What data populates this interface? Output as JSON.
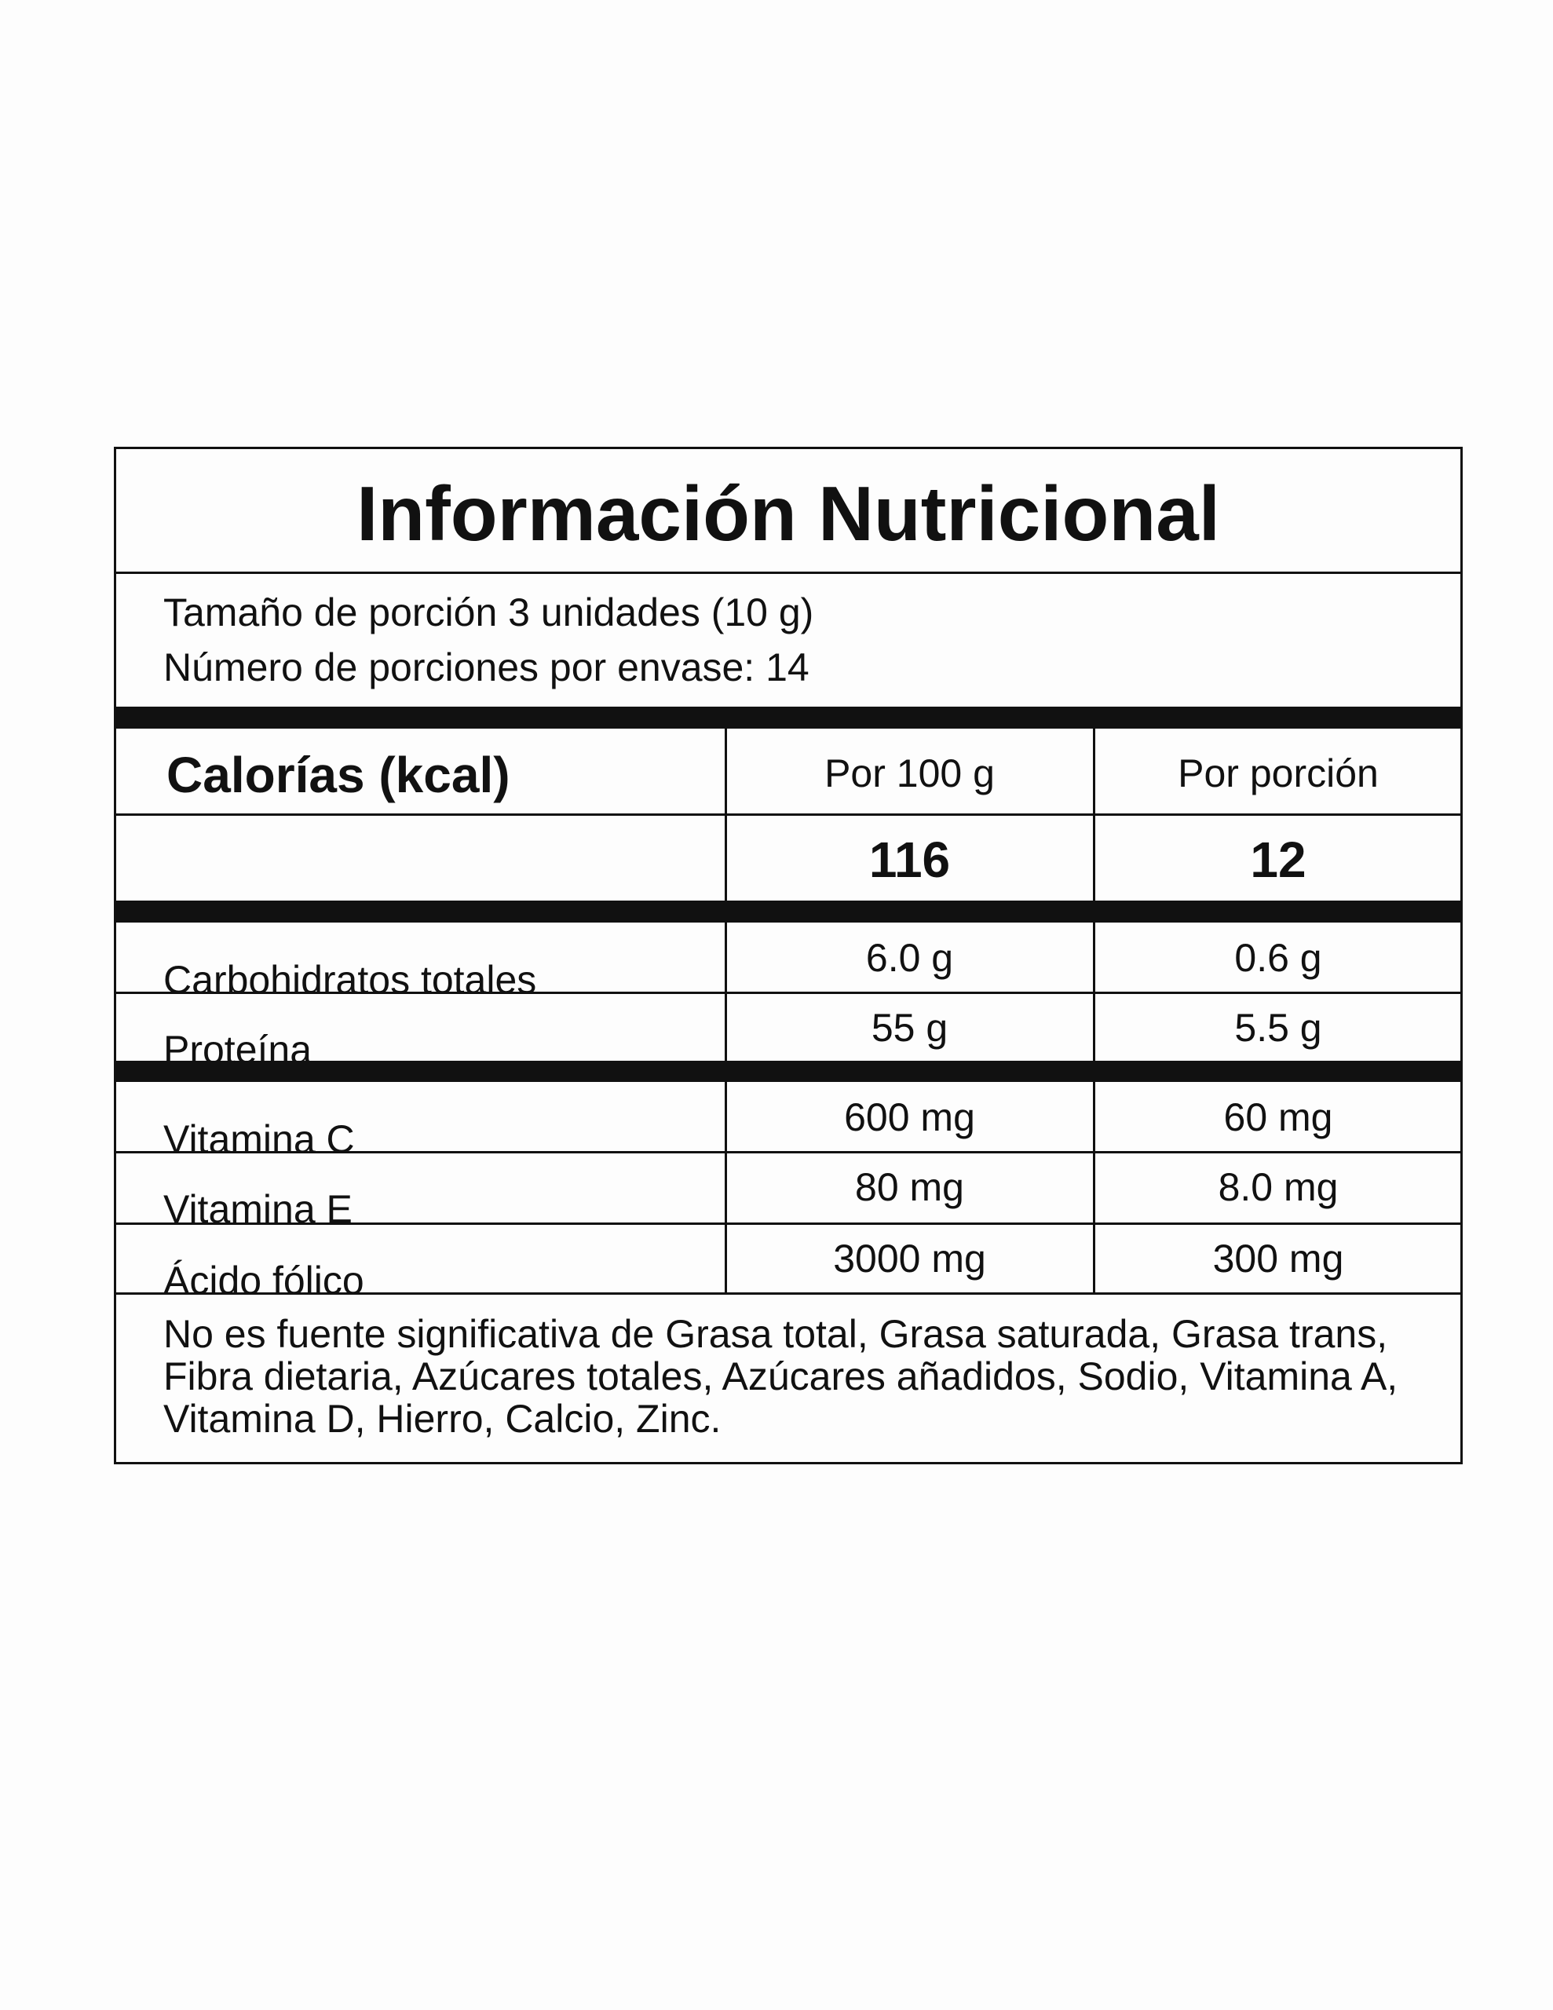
{
  "title": "Información Nutricional",
  "serving": [
    "Tamaño de porción 3 unidades (10 g)",
    "Número de porciones por envase: 14"
  ],
  "table": {
    "header": [
      "Calorías (kcal)",
      "Por 100 g",
      "Por porción"
    ],
    "calories": [
      "116",
      "12"
    ],
    "rows": [
      [
        "Carbohidratos totales",
        "6.0 g",
        "0.6 g"
      ],
      [
        "Proteína",
        "55 g",
        "5.5 g"
      ],
      [
        "Vitamina C",
        "600 mg",
        "60 mg"
      ],
      [
        "Vitamina E",
        "80 mg",
        "8.0 mg"
      ],
      [
        "Ácido fólico",
        "3000 mg",
        "300 mg"
      ]
    ]
  },
  "footnote": "No es fuente significativa de Grasa total, Grasa saturada, Grasa trans, Fibra dietaria, Azúcares totales, Azúcares añadidos, Sodio, Vitamina A, Vitamina D, Hierro, Calcio, Zinc."
}
